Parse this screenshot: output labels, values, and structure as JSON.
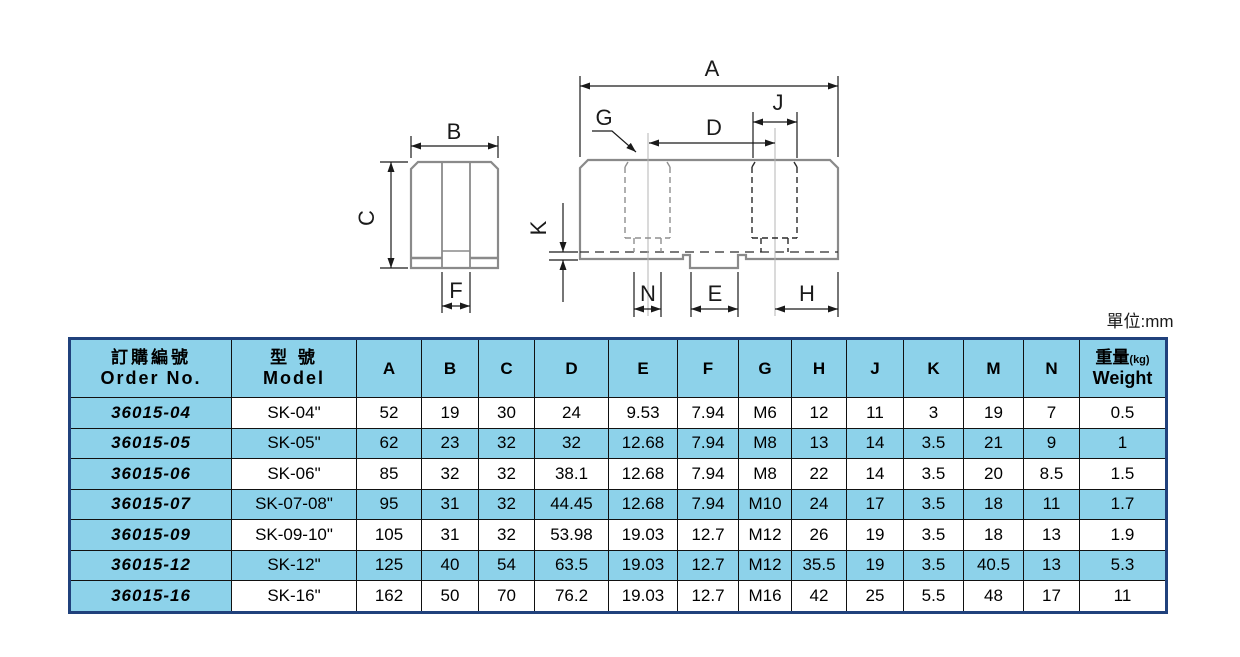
{
  "unit_label": "單位:mm",
  "drawing": {
    "labels": {
      "A": "A",
      "B": "B",
      "C": "C",
      "D": "D",
      "E": "E",
      "F": "F",
      "G": "G",
      "H": "H",
      "J": "J",
      "K": "K",
      "N": "N"
    }
  },
  "table": {
    "header": {
      "order_no_zh": "訂購編號",
      "order_no_en": "Order No.",
      "model_zh": "型 號",
      "model_en": "Model",
      "dims": [
        "A",
        "B",
        "C",
        "D",
        "E",
        "F",
        "G",
        "H",
        "J",
        "K",
        "M",
        "N"
      ],
      "weight_zh": "重量",
      "weight_unit": "(kg)",
      "weight_en": "Weight"
    },
    "rows": [
      {
        "order_no": "36015-04",
        "model": "SK-04\"",
        "values": [
          "52",
          "19",
          "30",
          "24",
          "9.53",
          "7.94",
          "M6",
          "12",
          "11",
          "3",
          "19",
          "7"
        ],
        "weight": "0.5"
      },
      {
        "order_no": "36015-05",
        "model": "SK-05\"",
        "values": [
          "62",
          "23",
          "32",
          "32",
          "12.68",
          "7.94",
          "M8",
          "13",
          "14",
          "3.5",
          "21",
          "9"
        ],
        "weight": "1"
      },
      {
        "order_no": "36015-06",
        "model": "SK-06\"",
        "values": [
          "85",
          "32",
          "32",
          "38.1",
          "12.68",
          "7.94",
          "M8",
          "22",
          "14",
          "3.5",
          "20",
          "8.5"
        ],
        "weight": "1.5"
      },
      {
        "order_no": "36015-07",
        "model": "SK-07-08\"",
        "values": [
          "95",
          "31",
          "32",
          "44.45",
          "12.68",
          "7.94",
          "M10",
          "24",
          "17",
          "3.5",
          "18",
          "11"
        ],
        "weight": "1.7"
      },
      {
        "order_no": "36015-09",
        "model": "SK-09-10\"",
        "values": [
          "105",
          "31",
          "32",
          "53.98",
          "19.03",
          "12.7",
          "M12",
          "26",
          "19",
          "3.5",
          "18",
          "13"
        ],
        "weight": "1.9"
      },
      {
        "order_no": "36015-12",
        "model": "SK-12\"",
        "values": [
          "125",
          "40",
          "54",
          "63.5",
          "19.03",
          "12.7",
          "M12",
          "35.5",
          "19",
          "3.5",
          "40.5",
          "13"
        ],
        "weight": "5.3"
      },
      {
        "order_no": "36015-16",
        "model": "SK-16\"",
        "values": [
          "162",
          "50",
          "70",
          "76.2",
          "19.03",
          "12.7",
          "M16",
          "42",
          "25",
          "5.5",
          "48",
          "17"
        ],
        "weight": "11"
      }
    ]
  },
  "colors": {
    "accent_blue": "#8dd2ea",
    "border_navy": "#20417c"
  }
}
